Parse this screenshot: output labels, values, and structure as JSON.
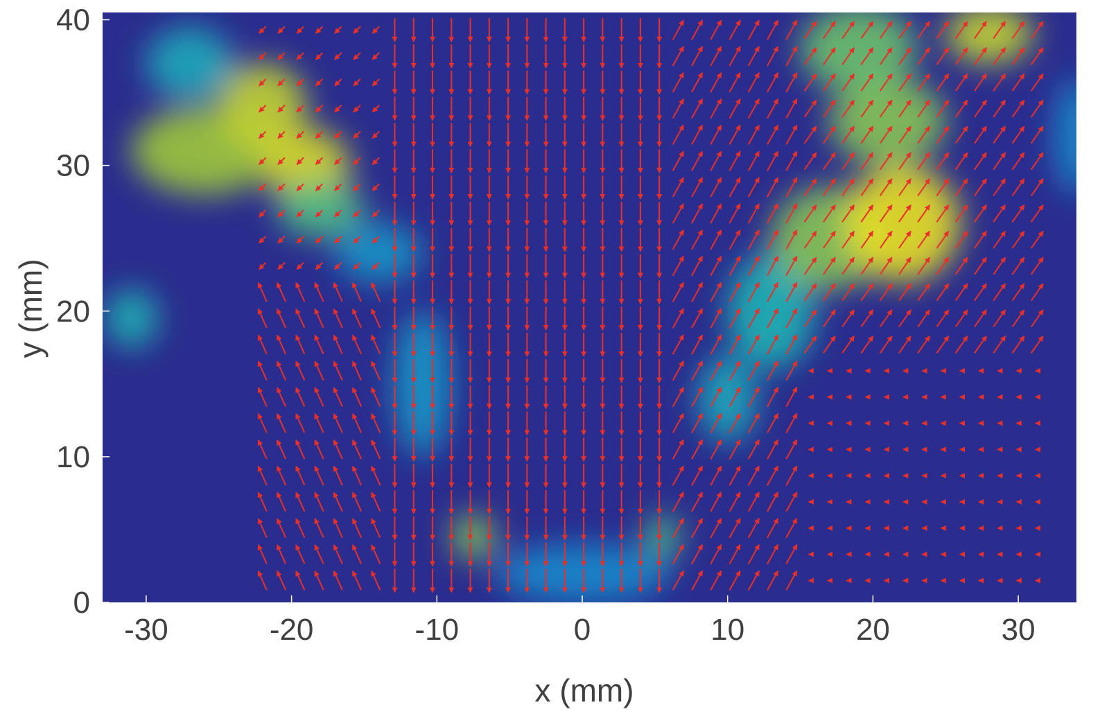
{
  "chart_data": {
    "type": "heatmap",
    "subtype": "PIV vector field overlaid on intensity map",
    "title": "",
    "xlabel": "x (mm)",
    "ylabel": "y (mm)",
    "xlim": [
      -33,
      34
    ],
    "ylim": [
      0,
      40.5
    ],
    "x_ticks": [
      -30,
      -20,
      -10,
      0,
      10,
      20,
      30
    ],
    "y_ticks": [
      0,
      10,
      20,
      30,
      40
    ],
    "x_tick_labels": [
      "-30",
      "-20",
      "-10",
      "0",
      "10",
      "20",
      "30"
    ],
    "y_tick_labels": [
      "0",
      "10",
      "20",
      "30",
      "40"
    ],
    "grid": false,
    "colormap": "parula",
    "colors": {
      "background": "#2b2d8e",
      "vector": "#e8302a",
      "axis_text": "#404040"
    },
    "intensity_regions": [
      {
        "x": -26,
        "y": 31,
        "rx": 5,
        "ry": 3,
        "level": 0.75
      },
      {
        "x": -22,
        "y": 34,
        "rx": 3,
        "ry": 3,
        "level": 0.85
      },
      {
        "x": -19,
        "y": 30,
        "rx": 3,
        "ry": 2.5,
        "level": 0.9
      },
      {
        "x": -18,
        "y": 27,
        "rx": 3,
        "ry": 2,
        "level": 0.6
      },
      {
        "x": -27,
        "y": 37,
        "rx": 3,
        "ry": 2.5,
        "level": 0.45
      },
      {
        "x": -31,
        "y": 19.5,
        "rx": 1.8,
        "ry": 2,
        "level": 0.5
      },
      {
        "x": -14,
        "y": 24,
        "rx": 3,
        "ry": 2,
        "level": 0.35
      },
      {
        "x": -11,
        "y": 15,
        "rx": 2,
        "ry": 5,
        "level": 0.35
      },
      {
        "x": -7.5,
        "y": 4.5,
        "rx": 1.5,
        "ry": 1.5,
        "level": 0.7
      },
      {
        "x": 0,
        "y": 2,
        "rx": 6,
        "ry": 2,
        "level": 0.3
      },
      {
        "x": 5.5,
        "y": 4.5,
        "rx": 1.2,
        "ry": 1.5,
        "level": 0.6
      },
      {
        "x": 10,
        "y": 14,
        "rx": 2,
        "ry": 3,
        "level": 0.45
      },
      {
        "x": 13,
        "y": 20,
        "rx": 3,
        "ry": 4,
        "level": 0.5
      },
      {
        "x": 17,
        "y": 25,
        "rx": 4,
        "ry": 3.5,
        "level": 0.7
      },
      {
        "x": 22,
        "y": 26,
        "rx": 4,
        "ry": 4,
        "level": 0.95
      },
      {
        "x": 21,
        "y": 33,
        "rx": 4,
        "ry": 3,
        "level": 0.7
      },
      {
        "x": 19,
        "y": 38,
        "rx": 4,
        "ry": 3,
        "level": 0.65
      },
      {
        "x": 28,
        "y": 39,
        "rx": 3,
        "ry": 2,
        "level": 0.85
      },
      {
        "x": 34,
        "y": 32,
        "rx": 1.5,
        "ry": 4,
        "level": 0.3
      }
    ],
    "vector_field": [
      {
        "region": "central downward jet",
        "x": [
          -13,
          5
        ],
        "y": [
          1,
          40
        ],
        "u": 0,
        "v": -1,
        "speed": "high"
      },
      {
        "region": "left upward-left flow",
        "x": [
          -22,
          -9
        ],
        "y": [
          1,
          22
        ],
        "u": -0.5,
        "v": 1,
        "speed": "high"
      },
      {
        "region": "right upward-right flow",
        "x": [
          6,
          32
        ],
        "y": [
          1,
          40
        ],
        "u": 0.6,
        "v": 1,
        "speed": "high"
      },
      {
        "region": "right quiescent zone",
        "x": [
          15,
          32
        ],
        "y": [
          1,
          17
        ],
        "u": 0,
        "v": 0,
        "speed": "low"
      }
    ]
  }
}
